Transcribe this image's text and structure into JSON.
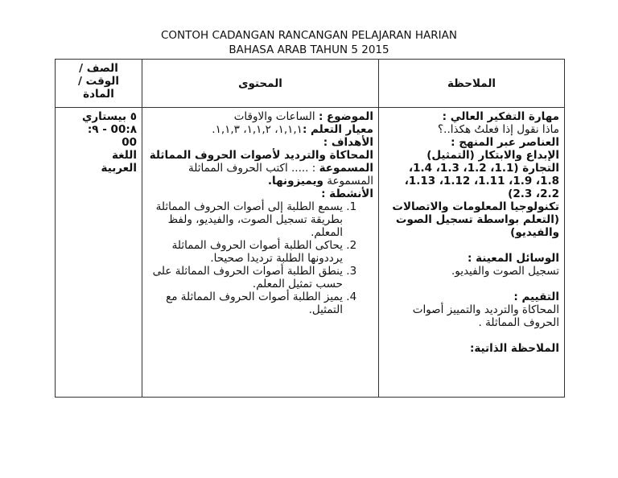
{
  "title": {
    "line1": "CONTOH CADANGAN RANCANGAN PELAJARAN HARIAN",
    "line2": "BAHASA ARAB TAHUN 5 2015"
  },
  "header": {
    "class_time_subject": [
      "الصف /",
      "الوقت /",
      "المادة"
    ],
    "content": "المحتوى",
    "notes": "الملاحظة"
  },
  "class_cell": [
    "٥ بيستاري",
    "٨:00 - ٩:",
    "00",
    "اللغة",
    "العربية"
  ],
  "content_cell": {
    "topic_label": "الموضوع :",
    "topic_value": " الساعات والاوقات",
    "standard_label": "معيار التعلم :",
    "standard_value": "١,١,١،  ١,١,٢،  ١,١,٣.",
    "objectives_label": "الأهداف :",
    "objective_bold": "المحاكاة والترديد لأصوات الحروف المماثلة المسموعة",
    "objective_text": " : ..... اكتب الحروف المماثلة المسموعة ",
    "objective_bold_end": "ويميزونها.",
    "activities_label": "الأنشطة :",
    "activities": [
      "يسمع الطلبة إلى أصوات الحروف المماثلة بطريقة تسجيل الصوت، والفيديو، ولفظ المعلم.",
      "يحاكى الطلبة  أصوات  الحروف المماثلة يرددونها الطلبة ترديدا صحيحا.",
      "ينطق الطلبة  أصوات الحروف المماثلة على حسب تمثيل المعلم.",
      "يميز الطلبة  أصوات  الحروف المماثلة مع التمثيل."
    ]
  },
  "notes_cell": {
    "hots_label": "مهارة التفكير العالي :",
    "hots_value": "ماذا نقول إذا فعلتُ هكذا..؟",
    "cross_label": "العناصر عبر المنهج :",
    "cross_items": [
      "الإبداع والابتكار (التمثيل)",
      "التجارة (1.1، 1.2، 1.3، 1.4، 1.8، 1.9، 1.11، 1.12، 1.13، 2.2، 2.3)",
      "تكنولوجيا المعلومات والاتصالات (التعلم بواسطة تسجيل الصوت والفيديو)"
    ],
    "aids_label": "الوسائل المعينة :",
    "aids_value": "تسجيل الصوت والفيديو.",
    "assessment_label": "التقييم :",
    "assessment_value": "المحاكاة والترديد والتمييز أصوات  الحروف المماثلة  .",
    "reflection_label": "الملاحظة الذاتية:"
  }
}
